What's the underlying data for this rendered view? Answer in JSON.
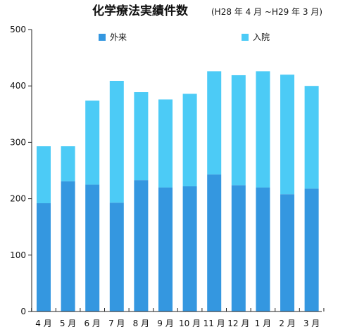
{
  "chart_data": {
    "type": "bar",
    "stacked": true,
    "title": "化学療法実績件数",
    "subtitle": "(H28 年 4 月 ~H29 年 3 月)",
    "xlabel": "",
    "ylabel": "",
    "categories": [
      "4 月",
      "5 月",
      "6 月",
      "7 月",
      "8 月",
      "9 月",
      "10 月",
      "11 月",
      "12 月",
      "1 月",
      "2 月",
      "3 月"
    ],
    "series": [
      {
        "name": "外来",
        "color": "#3497e0",
        "values": [
          192,
          231,
          225,
          193,
          233,
          220,
          222,
          243,
          224,
          220,
          208,
          218
        ]
      },
      {
        "name": "入院",
        "color": "#4ccbf6",
        "values": [
          101,
          62,
          149,
          216,
          156,
          156,
          164,
          183,
          195,
          206,
          212,
          182
        ]
      }
    ],
    "ylim": [
      0,
      500
    ],
    "yticks": [
      "0",
      "100",
      "200",
      "300",
      "400",
      "500"
    ],
    "grid": false,
    "legend": "top"
  }
}
